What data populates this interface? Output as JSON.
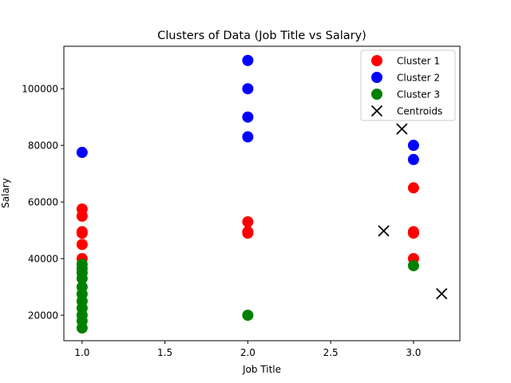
{
  "chart_data": {
    "type": "scatter",
    "title": "Clusters of Data (Job Title vs Salary)",
    "xlabel": "Job Title",
    "ylabel": "Salary",
    "xlim": [
      0.89,
      3.28
    ],
    "ylim": [
      11000,
      115000
    ],
    "x_ticks": [
      1.0,
      1.5,
      2.0,
      2.5,
      3.0
    ],
    "x_tick_labels": [
      "1.0",
      "1.5",
      "2.0",
      "2.5",
      "3.0"
    ],
    "y_ticks": [
      20000,
      40000,
      60000,
      80000,
      100000
    ],
    "y_tick_labels": [
      "20000",
      "40000",
      "60000",
      "80000",
      "100000"
    ],
    "grid": false,
    "legend_position": "top-right",
    "series": [
      {
        "name": "Cluster 1",
        "color": "#ff0000",
        "marker": "circle",
        "points": [
          [
            1,
            57500
          ],
          [
            1,
            55000
          ],
          [
            1,
            49500
          ],
          [
            1,
            49000
          ],
          [
            1,
            45000
          ],
          [
            1,
            40000
          ],
          [
            2,
            53000
          ],
          [
            2,
            49500
          ],
          [
            2,
            49000
          ],
          [
            3,
            65000
          ],
          [
            3,
            49500
          ],
          [
            3,
            49000
          ],
          [
            3,
            40000
          ]
        ]
      },
      {
        "name": "Cluster 2",
        "color": "#0000ff",
        "marker": "circle",
        "points": [
          [
            1,
            77500
          ],
          [
            2,
            110000
          ],
          [
            2,
            100000
          ],
          [
            2,
            90000
          ],
          [
            2,
            83000
          ],
          [
            3,
            80000
          ],
          [
            3,
            75000
          ]
        ]
      },
      {
        "name": "Cluster 3",
        "color": "#008000",
        "marker": "circle",
        "points": [
          [
            1,
            38000
          ],
          [
            1,
            36500
          ],
          [
            1,
            35000
          ],
          [
            1,
            33000
          ],
          [
            1,
            30000
          ],
          [
            1,
            27500
          ],
          [
            1,
            25000
          ],
          [
            1,
            22500
          ],
          [
            1,
            20000
          ],
          [
            1,
            18000
          ],
          [
            1,
            15500
          ],
          [
            2,
            20000
          ],
          [
            3,
            37500
          ]
        ]
      },
      {
        "name": "Centroids",
        "color": "#000000",
        "marker": "x",
        "points": [
          [
            2.93,
            85800
          ],
          [
            2.82,
            49800
          ],
          [
            3.17,
            27600
          ]
        ]
      }
    ]
  }
}
